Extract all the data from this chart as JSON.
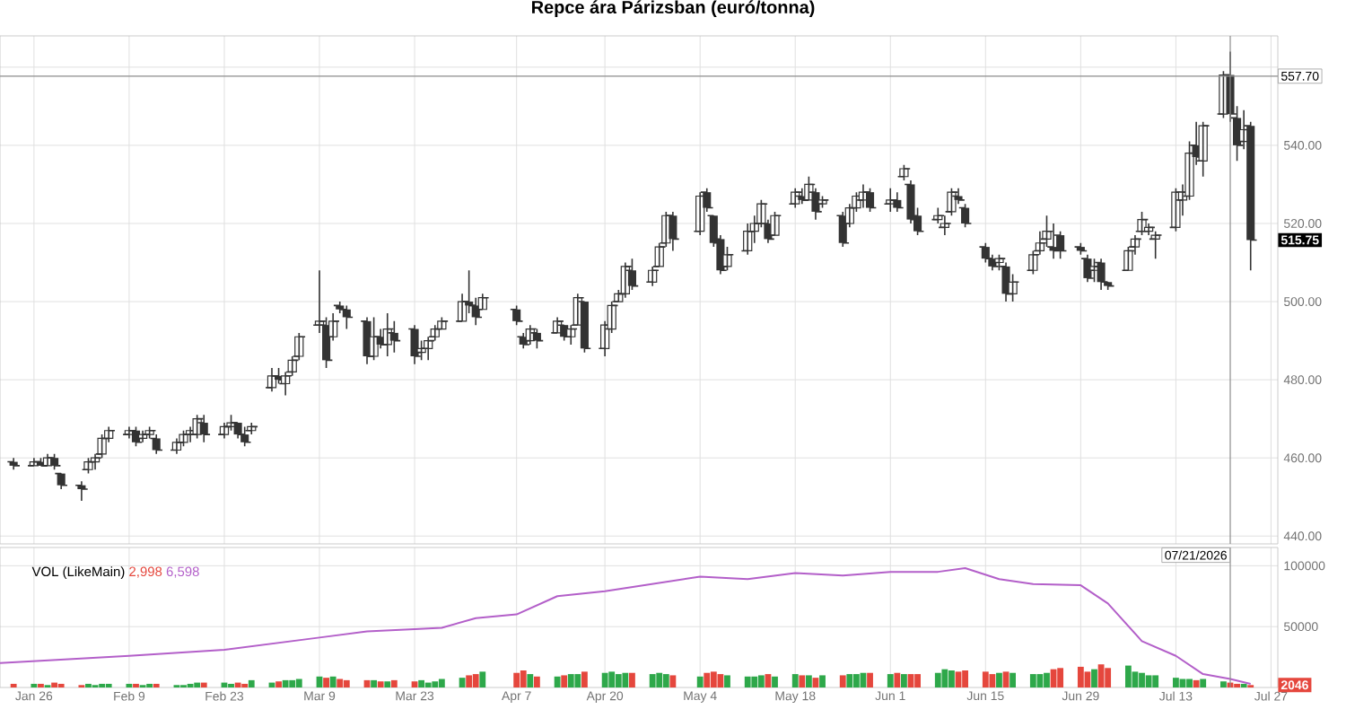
{
  "chart_data": [
    {
      "type": "candlestick",
      "title": "Repce ára Párizsban (euró/tonna)",
      "color": "#333333",
      "x": [
        "2026-01-23",
        "2026-01-26",
        "2026-01-27",
        "2026-01-28",
        "2026-01-29",
        "2026-01-30",
        "2026-02-02",
        "2026-02-03",
        "2026-02-04",
        "2026-02-05",
        "2026-02-06",
        "2026-02-09",
        "2026-02-10",
        "2026-02-11",
        "2026-02-12",
        "2026-02-13",
        "2026-02-16",
        "2026-02-17",
        "2026-02-18",
        "2026-02-19",
        "2026-02-20",
        "2026-02-23",
        "2026-02-24",
        "2026-02-25",
        "2026-02-26",
        "2026-02-27",
        "2026-03-02",
        "2026-03-03",
        "2026-03-04",
        "2026-03-05",
        "2026-03-06",
        "2026-03-09",
        "2026-03-10",
        "2026-03-11",
        "2026-03-12",
        "2026-03-13",
        "2026-03-16",
        "2026-03-17",
        "2026-03-18",
        "2026-03-19",
        "2026-03-20",
        "2026-03-23",
        "2026-03-24",
        "2026-03-25",
        "2026-03-26",
        "2026-03-27",
        "2026-03-30",
        "2026-03-31",
        "2026-04-01",
        "2026-04-02",
        "2026-04-07",
        "2026-04-08",
        "2026-04-09",
        "2026-04-10",
        "2026-04-13",
        "2026-04-14",
        "2026-04-15",
        "2026-04-16",
        "2026-04-17",
        "2026-04-20",
        "2026-04-21",
        "2026-04-22",
        "2026-04-23",
        "2026-04-24",
        "2026-04-27",
        "2026-04-28",
        "2026-04-29",
        "2026-04-30",
        "2026-05-04",
        "2026-05-05",
        "2026-05-06",
        "2026-05-07",
        "2026-05-08",
        "2026-05-11",
        "2026-05-12",
        "2026-05-13",
        "2026-05-14",
        "2026-05-15",
        "2026-05-18",
        "2026-05-19",
        "2026-05-20",
        "2026-05-21",
        "2026-05-22",
        "2026-05-25",
        "2026-05-26",
        "2026-05-27",
        "2026-05-28",
        "2026-05-29",
        "2026-06-01",
        "2026-06-02",
        "2026-06-03",
        "2026-06-04",
        "2026-06-05",
        "2026-06-08",
        "2026-06-09",
        "2026-06-10",
        "2026-06-11",
        "2026-06-12",
        "2026-06-15",
        "2026-06-16",
        "2026-06-17",
        "2026-06-18",
        "2026-06-19",
        "2026-06-22",
        "2026-06-23",
        "2026-06-24",
        "2026-06-25",
        "2026-06-26",
        "2026-06-29",
        "2026-06-30",
        "2026-07-01",
        "2026-07-02",
        "2026-07-03",
        "2026-07-06",
        "2026-07-07",
        "2026-07-08",
        "2026-07-09",
        "2026-07-10",
        "2026-07-13",
        "2026-07-14",
        "2026-07-15",
        "2026-07-16",
        "2026-07-17",
        "2026-07-20",
        "2026-07-21",
        "2026-07-22",
        "2026-07-23",
        "2026-07-24"
      ],
      "ohlc": [
        [
          459,
          460,
          457,
          458
        ],
        [
          458,
          460,
          458,
          459
        ],
        [
          459,
          460,
          458,
          458
        ],
        [
          458,
          461,
          458,
          460
        ],
        [
          460,
          461,
          457,
          458
        ],
        [
          456,
          456,
          452,
          453
        ],
        [
          453,
          454,
          449,
          452
        ],
        [
          457,
          460,
          456,
          459
        ],
        [
          459,
          461,
          457,
          460
        ],
        [
          461,
          466,
          460,
          465
        ],
        [
          465,
          468,
          464,
          467
        ],
        [
          466,
          468,
          465,
          467
        ],
        [
          467,
          468,
          463,
          464
        ],
        [
          465,
          467,
          464,
          466
        ],
        [
          466,
          468,
          465,
          467
        ],
        [
          465,
          466,
          461,
          462
        ],
        [
          462,
          465,
          461,
          464
        ],
        [
          464,
          467,
          463,
          466
        ],
        [
          466,
          468,
          464,
          467
        ],
        [
          466,
          471,
          465,
          470
        ],
        [
          469,
          471,
          464,
          466
        ],
        [
          466,
          469,
          465,
          468
        ],
        [
          468,
          471,
          467,
          469
        ],
        [
          469,
          469,
          465,
          466
        ],
        [
          466,
          468,
          463,
          464
        ],
        [
          467,
          469,
          466,
          468
        ],
        [
          478,
          483,
          477,
          481
        ],
        [
          481,
          483,
          479,
          480
        ],
        [
          479,
          482,
          476,
          481
        ],
        [
          482,
          486,
          481,
          485
        ],
        [
          486,
          492,
          485,
          491
        ],
        [
          494,
          508,
          492,
          495
        ],
        [
          494,
          496,
          483,
          485
        ],
        [
          491,
          497,
          490,
          495
        ],
        [
          499,
          500,
          497,
          498
        ],
        [
          498,
          499,
          493,
          496
        ],
        [
          495,
          496,
          484,
          486
        ],
        [
          486,
          496,
          485,
          491
        ],
        [
          491,
          493,
          488,
          489
        ],
        [
          489,
          497,
          486,
          493
        ],
        [
          492,
          495,
          487,
          490
        ],
        [
          493,
          494,
          484,
          486
        ],
        [
          487,
          490,
          485,
          488
        ],
        [
          488,
          491,
          485,
          490
        ],
        [
          491,
          494,
          490,
          493
        ],
        [
          493,
          496,
          493,
          495
        ],
        [
          495,
          502,
          495,
          500
        ],
        [
          500,
          508,
          497,
          499
        ],
        [
          499,
          501,
          494,
          496
        ],
        [
          498,
          502,
          498,
          501
        ],
        [
          498,
          499,
          494,
          495
        ],
        [
          491,
          492,
          488,
          489
        ],
        [
          490,
          494,
          489,
          493
        ],
        [
          492,
          493,
          488,
          490
        ],
        [
          492,
          496,
          492,
          495
        ],
        [
          494,
          494,
          490,
          491
        ],
        [
          491,
          494,
          489,
          493
        ],
        [
          494,
          502,
          494,
          501
        ],
        [
          500,
          500,
          487,
          488
        ],
        [
          488,
          495,
          486,
          494
        ],
        [
          493,
          500,
          492,
          499
        ],
        [
          500,
          503,
          500,
          502
        ],
        [
          502,
          510,
          501,
          509
        ],
        [
          508,
          511,
          503,
          504
        ],
        [
          505,
          509,
          504,
          508
        ],
        [
          509,
          515,
          509,
          514
        ],
        [
          515,
          523,
          514,
          522
        ],
        [
          522,
          523,
          513,
          516
        ],
        [
          518,
          528,
          517,
          527
        ],
        [
          528,
          529,
          523,
          524
        ],
        [
          522,
          522,
          514,
          515
        ],
        [
          516,
          517,
          507,
          508
        ],
        [
          509,
          514,
          508,
          512
        ],
        [
          513,
          520,
          512,
          518
        ],
        [
          518,
          522,
          515,
          520
        ],
        [
          520,
          526,
          519,
          525
        ],
        [
          520,
          521,
          515,
          516
        ],
        [
          517,
          523,
          517,
          522
        ],
        [
          525,
          529,
          524,
          528
        ],
        [
          527,
          529,
          525,
          526
        ],
        [
          526,
          532,
          526,
          530
        ],
        [
          528,
          529,
          521,
          523
        ],
        [
          525,
          527,
          524,
          526
        ],
        [
          522,
          523,
          514,
          515
        ],
        [
          520,
          525,
          519,
          524
        ],
        [
          524,
          528,
          523,
          527
        ],
        [
          526,
          530,
          524,
          528
        ],
        [
          528,
          529,
          523,
          524
        ],
        [
          525,
          529,
          523,
          526
        ],
        [
          526,
          528,
          523,
          524
        ],
        [
          532,
          535,
          531,
          534
        ],
        [
          530,
          531,
          520,
          521
        ],
        [
          522,
          524,
          517,
          518
        ],
        [
          521,
          524,
          520,
          522
        ],
        [
          519,
          522,
          517,
          520
        ],
        [
          523,
          529,
          522,
          528
        ],
        [
          527,
          529,
          525,
          526
        ],
        [
          524,
          525,
          519,
          520
        ],
        [
          514,
          515,
          510,
          511
        ],
        [
          511,
          512,
          508,
          509
        ],
        [
          510,
          512,
          508,
          511
        ],
        [
          509,
          510,
          500,
          502
        ],
        [
          502,
          507,
          500,
          505
        ],
        [
          508,
          513,
          507,
          512
        ],
        [
          513,
          518,
          512,
          515
        ],
        [
          516,
          522,
          514,
          518
        ],
        [
          514,
          520,
          511,
          513
        ],
        [
          517,
          518,
          511,
          513
        ],
        [
          514,
          515,
          512,
          513
        ],
        [
          511,
          512,
          505,
          506
        ],
        [
          508,
          511,
          505,
          509
        ],
        [
          510,
          511,
          503,
          505
        ],
        [
          505,
          505,
          503,
          504
        ],
        [
          508,
          514,
          508,
          513
        ],
        [
          514,
          517,
          512,
          516
        ],
        [
          518,
          523,
          517,
          521
        ],
        [
          518,
          520,
          517,
          519
        ],
        [
          516,
          518,
          511,
          517
        ],
        [
          519,
          529,
          518,
          528
        ],
        [
          526,
          530,
          522,
          528
        ],
        [
          527,
          541,
          526,
          538
        ],
        [
          540,
          546,
          535,
          537
        ],
        [
          536,
          546,
          532,
          545
        ],
        [
          548,
          559,
          547,
          558
        ],
        [
          558,
          564,
          546,
          548
        ],
        [
          547,
          550,
          536,
          540
        ],
        [
          541,
          549,
          539,
          544
        ],
        [
          545,
          546,
          508,
          515.75
        ]
      ],
      "xlim": [
        "2026-01-21",
        "2026-07-28"
      ],
      "xticks": [
        {
          "value": "2026-01-26",
          "label": null
        },
        {
          "value": "2026-02-09",
          "label": null
        },
        {
          "value": "2026-02-23",
          "label": null
        },
        {
          "value": "2026-03-09",
          "label": null
        },
        {
          "value": "2026-03-23",
          "label": null
        },
        {
          "value": "2026-04-07",
          "label": null
        },
        {
          "value": "2026-04-20",
          "label": null
        },
        {
          "value": "2026-05-04",
          "label": null
        },
        {
          "value": "2026-05-18",
          "label": null
        },
        {
          "value": "2026-06-01",
          "label": null
        },
        {
          "value": "2026-06-15",
          "label": null
        },
        {
          "value": "2026-06-29",
          "label": null
        },
        {
          "value": "2026-07-13",
          "label": null
        },
        {
          "value": "2026-07-27",
          "label": null
        }
      ],
      "ylim": [
        438,
        568
      ],
      "yticks": [
        {
          "value": 440,
          "label": "440.00"
        },
        {
          "value": 460,
          "label": "460.00"
        },
        {
          "value": 480,
          "label": "480.00"
        },
        {
          "value": 500,
          "label": "500.00"
        },
        {
          "value": 520,
          "label": "520.00"
        },
        {
          "value": 540,
          "label": "540.00"
        },
        {
          "value": 560,
          "label": null
        }
      ],
      "tick_labels": "y",
      "grid": true,
      "ref_lines": [
        {
          "axis": "y",
          "value": 557.7,
          "label": "557.70"
        },
        {
          "axis": "x",
          "value": "2026-07-21"
        }
      ],
      "annotations": [
        {
          "text": "515.75",
          "y": 515.75
        }
      ]
    },
    {
      "type": "bar",
      "x": [
        "2026-01-23",
        "2026-01-26",
        "2026-01-27",
        "2026-01-28",
        "2026-01-29",
        "2026-01-30",
        "2026-02-02",
        "2026-02-03",
        "2026-02-04",
        "2026-02-05",
        "2026-02-06",
        "2026-02-09",
        "2026-02-10",
        "2026-02-11",
        "2026-02-12",
        "2026-02-13",
        "2026-02-16",
        "2026-02-17",
        "2026-02-18",
        "2026-02-19",
        "2026-02-20",
        "2026-02-23",
        "2026-02-24",
        "2026-02-25",
        "2026-02-26",
        "2026-02-27",
        "2026-03-02",
        "2026-03-03",
        "2026-03-04",
        "2026-03-05",
        "2026-03-06",
        "2026-03-09",
        "2026-03-10",
        "2026-03-11",
        "2026-03-12",
        "2026-03-13",
        "2026-03-16",
        "2026-03-17",
        "2026-03-18",
        "2026-03-19",
        "2026-03-20",
        "2026-03-23",
        "2026-03-24",
        "2026-03-25",
        "2026-03-26",
        "2026-03-27",
        "2026-03-30",
        "2026-03-31",
        "2026-04-01",
        "2026-04-02",
        "2026-04-07",
        "2026-04-08",
        "2026-04-09",
        "2026-04-10",
        "2026-04-13",
        "2026-04-14",
        "2026-04-15",
        "2026-04-16",
        "2026-04-17",
        "2026-04-20",
        "2026-04-21",
        "2026-04-22",
        "2026-04-23",
        "2026-04-24",
        "2026-04-27",
        "2026-04-28",
        "2026-04-29",
        "2026-04-30",
        "2026-05-04",
        "2026-05-05",
        "2026-05-06",
        "2026-05-07",
        "2026-05-08",
        "2026-05-11",
        "2026-05-12",
        "2026-05-13",
        "2026-05-14",
        "2026-05-15",
        "2026-05-18",
        "2026-05-19",
        "2026-05-20",
        "2026-05-21",
        "2026-05-22",
        "2026-05-25",
        "2026-05-26",
        "2026-05-27",
        "2026-05-28",
        "2026-05-29",
        "2026-06-01",
        "2026-06-02",
        "2026-06-03",
        "2026-06-04",
        "2026-06-05",
        "2026-06-08",
        "2026-06-09",
        "2026-06-10",
        "2026-06-11",
        "2026-06-12",
        "2026-06-15",
        "2026-06-16",
        "2026-06-17",
        "2026-06-18",
        "2026-06-19",
        "2026-06-22",
        "2026-06-23",
        "2026-06-24",
        "2026-06-25",
        "2026-06-26",
        "2026-06-29",
        "2026-06-30",
        "2026-07-01",
        "2026-07-02",
        "2026-07-03",
        "2026-07-06",
        "2026-07-07",
        "2026-07-08",
        "2026-07-09",
        "2026-07-10",
        "2026-07-13",
        "2026-07-14",
        "2026-07-15",
        "2026-07-16",
        "2026-07-17",
        "2026-07-20",
        "2026-07-21",
        "2026-07-22",
        "2026-07-23",
        "2026-07-24"
      ],
      "series": [
        {
          "type": "bar",
          "values": [
            3000,
            3000,
            3000,
            2000,
            4000,
            3000,
            2000,
            3000,
            2000,
            3000,
            3000,
            3000,
            3000,
            2000,
            3000,
            3000,
            2000,
            2000,
            3000,
            4000,
            4000,
            4000,
            3000,
            4000,
            3000,
            6000,
            4000,
            5000,
            6000,
            6000,
            7000,
            9000,
            8000,
            9000,
            7000,
            6000,
            6000,
            6000,
            5000,
            5000,
            6000,
            5000,
            6000,
            4000,
            5000,
            7000,
            8000,
            10000,
            11000,
            13000,
            12000,
            14000,
            11000,
            9000,
            9000,
            10000,
            11000,
            11000,
            13000,
            12000,
            13000,
            11000,
            12000,
            12000,
            11000,
            12000,
            11000,
            10000,
            9000,
            12000,
            13000,
            11000,
            10000,
            9000,
            9000,
            10000,
            11000,
            9000,
            11000,
            10000,
            10000,
            8000,
            10000,
            10000,
            11000,
            11000,
            12000,
            12000,
            11000,
            12000,
            11000,
            11000,
            11000,
            12000,
            15000,
            14000,
            13000,
            14000,
            13000,
            11000,
            12000,
            13000,
            12000,
            11000,
            11000,
            12000,
            15000,
            16000,
            17000,
            13000,
            15000,
            19000,
            16000,
            18000,
            13000,
            12000,
            10000,
            10000,
            8000,
            7000,
            7000,
            6000,
            7000,
            5000,
            4000,
            3000,
            3000,
            2000
          ],
          "colors": [
            "#e5473d",
            "#2ea84a",
            "#e5473d",
            "#2ea84a",
            "#e5473d",
            "#e5473d",
            "#e5473d",
            "#2ea84a",
            "#2ea84a",
            "#2ea84a",
            "#2ea84a",
            "#2ea84a",
            "#e5473d",
            "#2ea84a",
            "#2ea84a",
            "#e5473d",
            "#2ea84a",
            "#2ea84a",
            "#2ea84a",
            "#2ea84a",
            "#e5473d",
            "#2ea84a",
            "#2ea84a",
            "#e5473d",
            "#e5473d",
            "#2ea84a",
            "#2ea84a",
            "#e5473d",
            "#2ea84a",
            "#2ea84a",
            "#2ea84a",
            "#2ea84a",
            "#e5473d",
            "#2ea84a",
            "#e5473d",
            "#e5473d",
            "#e5473d",
            "#2ea84a",
            "#e5473d",
            "#2ea84a",
            "#e5473d",
            "#e5473d",
            "#2ea84a",
            "#2ea84a",
            "#2ea84a",
            "#2ea84a",
            "#2ea84a",
            "#e5473d",
            "#e5473d",
            "#2ea84a",
            "#e5473d",
            "#e5473d",
            "#2ea84a",
            "#e5473d",
            "#2ea84a",
            "#e5473d",
            "#2ea84a",
            "#2ea84a",
            "#e5473d",
            "#2ea84a",
            "#2ea84a",
            "#2ea84a",
            "#2ea84a",
            "#e5473d",
            "#2ea84a",
            "#2ea84a",
            "#2ea84a",
            "#e5473d",
            "#2ea84a",
            "#e5473d",
            "#e5473d",
            "#e5473d",
            "#2ea84a",
            "#2ea84a",
            "#2ea84a",
            "#2ea84a",
            "#e5473d",
            "#2ea84a",
            "#2ea84a",
            "#e5473d",
            "#2ea84a",
            "#e5473d",
            "#2ea84a",
            "#e5473d",
            "#2ea84a",
            "#2ea84a",
            "#2ea84a",
            "#e5473d",
            "#2ea84a",
            "#e5473d",
            "#2ea84a",
            "#e5473d",
            "#e5473d",
            "#2ea84a",
            "#2ea84a",
            "#2ea84a",
            "#e5473d",
            "#e5473d",
            "#e5473d",
            "#e5473d",
            "#2ea84a",
            "#e5473d",
            "#2ea84a",
            "#2ea84a",
            "#2ea84a",
            "#2ea84a",
            "#e5473d",
            "#e5473d",
            "#e5473d",
            "#e5473d",
            "#2ea84a",
            "#e5473d",
            "#e5473d",
            "#2ea84a",
            "#2ea84a",
            "#2ea84a",
            "#2ea84a",
            "#2ea84a",
            "#2ea84a",
            "#2ea84a",
            "#2ea84a",
            "#e5473d",
            "#2ea84a",
            "#2ea84a",
            "#e5473d",
            "#e5473d",
            "#2ea84a",
            "#e5473d"
          ]
        },
        {
          "type": "line",
          "color": "#b35fc9",
          "x": [
            "2026-01-21",
            "2026-02-09",
            "2026-02-23",
            "2026-03-09",
            "2026-03-16",
            "2026-03-23",
            "2026-03-27",
            "2026-04-01",
            "2026-04-07",
            "2026-04-13",
            "2026-04-20",
            "2026-04-27",
            "2026-05-04",
            "2026-05-11",
            "2026-05-18",
            "2026-05-25",
            "2026-06-01",
            "2026-06-08",
            "2026-06-12",
            "2026-06-17",
            "2026-06-22",
            "2026-06-29",
            "2026-07-03",
            "2026-07-08",
            "2026-07-13",
            "2026-07-17",
            "2026-07-21",
            "2026-07-24"
          ],
          "values": [
            20000,
            26000,
            31000,
            41000,
            46000,
            48000,
            49000,
            57000,
            60000,
            75000,
            79000,
            85000,
            91000,
            89000,
            94000,
            92000,
            95000,
            95000,
            98000,
            89000,
            85000,
            84000,
            69000,
            38000,
            26000,
            11000,
            7000,
            3000
          ]
        }
      ],
      "xlim": [
        "2026-01-21",
        "2026-07-28"
      ],
      "xticks": [
        {
          "value": "2026-01-26",
          "label": "Jan 26"
        },
        {
          "value": "2026-02-09",
          "label": "Feb 9"
        },
        {
          "value": "2026-02-23",
          "label": "Feb 23"
        },
        {
          "value": "2026-03-09",
          "label": "Mar 9"
        },
        {
          "value": "2026-03-23",
          "label": "Mar 23"
        },
        {
          "value": "2026-04-07",
          "label": "Apr 7"
        },
        {
          "value": "2026-04-20",
          "label": "Apr 20"
        },
        {
          "value": "2026-05-04",
          "label": "May 4"
        },
        {
          "value": "2026-05-18",
          "label": "May 18"
        },
        {
          "value": "2026-06-01",
          "label": "Jun 1"
        },
        {
          "value": "2026-06-15",
          "label": "Jun 15"
        },
        {
          "value": "2026-06-29",
          "label": "Jun 29"
        },
        {
          "value": "2026-07-13",
          "label": "Jul 13"
        },
        {
          "value": "2026-07-27",
          "label": "Jul 27"
        }
      ],
      "ylim": [
        0,
        115000
      ],
      "yticks": [
        50000,
        100000
      ],
      "grid": true,
      "ref_lines": [
        {
          "axis": "x",
          "value": "2026-07-21",
          "label": "07/21/2026"
        }
      ],
      "annotations": [
        "VOL (LikeMain)",
        "2,998",
        "6,598",
        {
          "text": "2046",
          "y": 2046
        }
      ]
    }
  ]
}
